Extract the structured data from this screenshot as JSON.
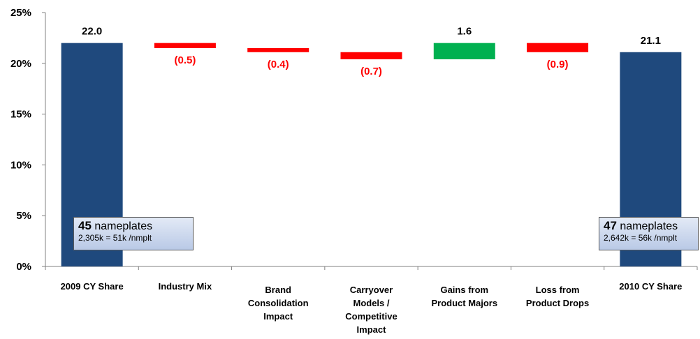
{
  "chart_data": {
    "type": "waterfall",
    "ylim": [
      0,
      25
    ],
    "yticks": [
      "0%",
      "5%",
      "10%",
      "15%",
      "20%",
      "25%"
    ],
    "categories": [
      [
        "2009 CY Share"
      ],
      [
        "Industry Mix"
      ],
      [
        "Brand",
        "Consolidation",
        "Impact"
      ],
      [
        "Carryover",
        "Models /",
        "Competitive",
        "Impact"
      ],
      [
        "Gains from",
        "Product Majors"
      ],
      [
        "Loss from",
        "Product Drops"
      ],
      [
        "2010 CY Share"
      ]
    ],
    "values": [
      22.0,
      -0.5,
      -0.4,
      -0.7,
      1.6,
      -0.9,
      21.1
    ],
    "kinds": [
      "total",
      "delta",
      "delta",
      "delta",
      "delta",
      "delta",
      "total"
    ],
    "labels": [
      "22.0",
      "(0.5)",
      "(0.4)",
      "(0.7)",
      "1.6",
      "(0.9)",
      "21.1"
    ],
    "colors": {
      "total": "#1f497d",
      "decrease": "#ff0000",
      "increase": "#00b050",
      "decrease_label": "#ff0000",
      "label": "#000000"
    },
    "grid": false
  },
  "callouts": {
    "left": {
      "count": "45",
      "unit": "nameplates",
      "detail": "2,305k = 51k /nmplt"
    },
    "right": {
      "count": "47",
      "unit": "nameplates",
      "detail": "2,642k = 56k /nmplt"
    }
  }
}
